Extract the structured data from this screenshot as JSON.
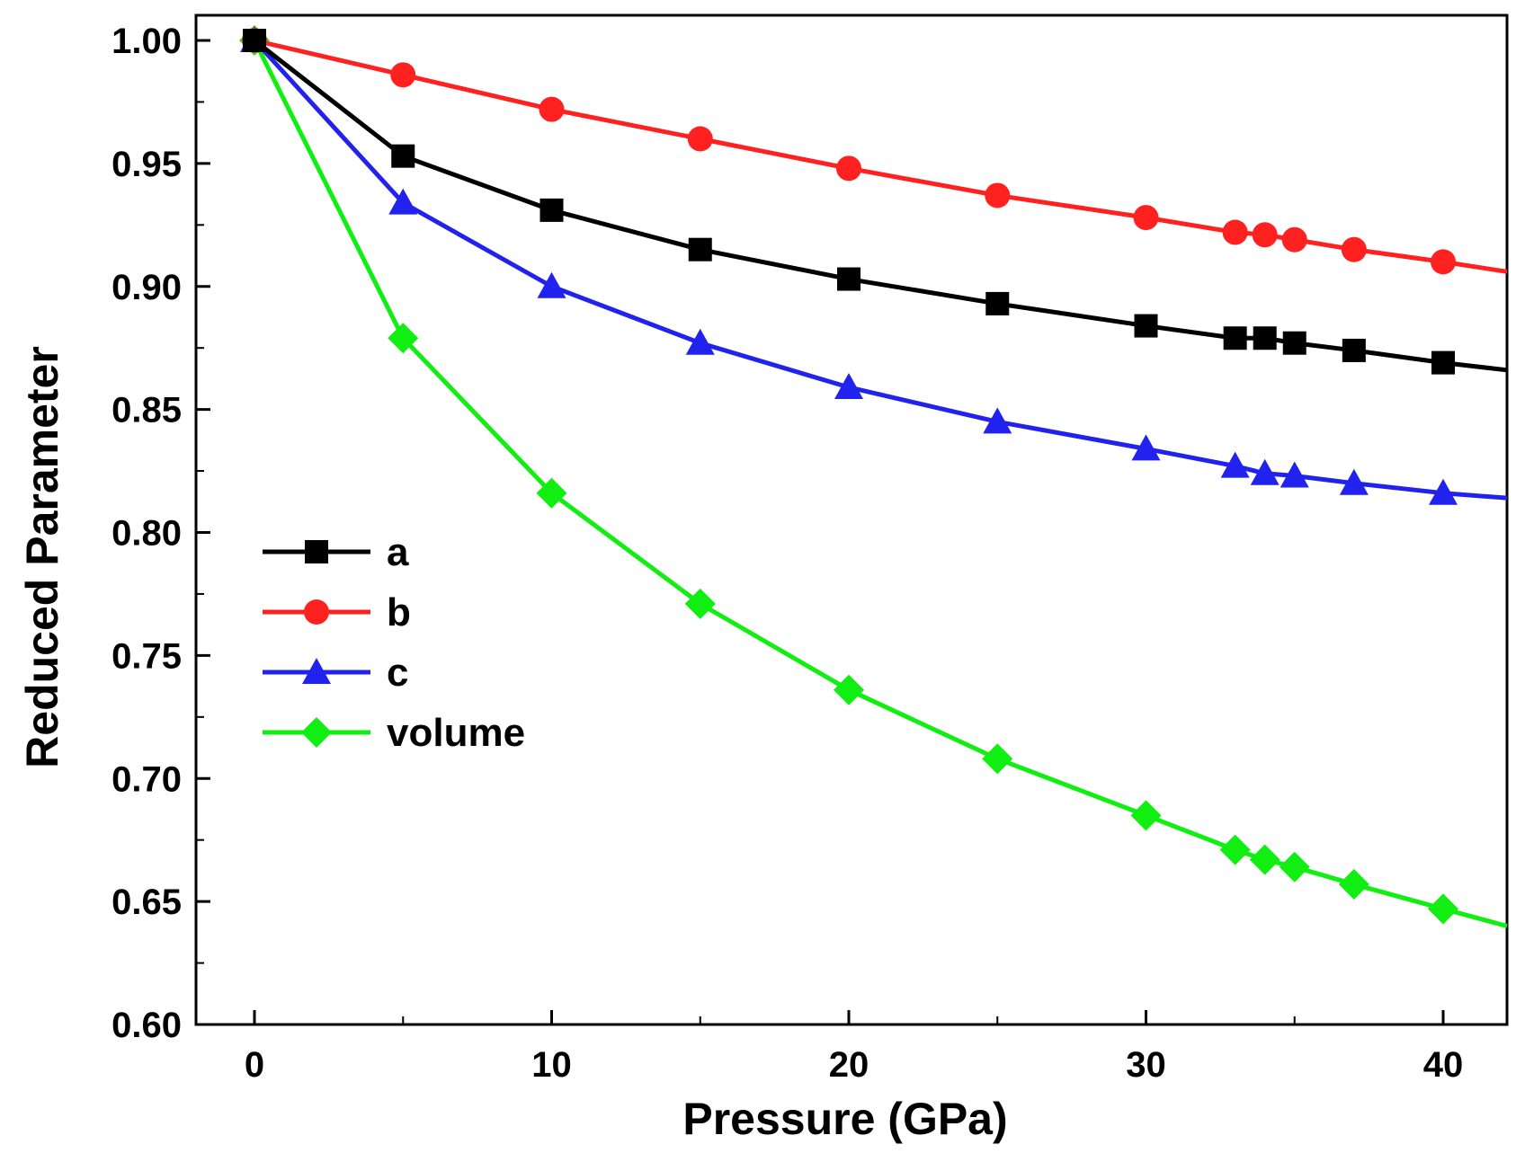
{
  "chart_data": {
    "type": "line",
    "title": "",
    "xlabel": "Pressure (GPa)",
    "ylabel": "Reduced Parameter",
    "xlim": [
      -2,
      42
    ],
    "ylim": [
      0.6,
      1.0
    ],
    "xticks": [
      0,
      10,
      20,
      30,
      40
    ],
    "xtick_labels": [
      "0",
      "10",
      "20",
      "30",
      "40"
    ],
    "yticks": [
      0.6,
      0.65,
      0.7,
      0.75,
      0.8,
      0.85,
      0.9,
      0.95,
      1.0
    ],
    "ytick_labels": [
      "0.60",
      "0.65",
      "0.70",
      "0.75",
      "0.80",
      "0.85",
      "0.90",
      "0.95",
      "1.00"
    ],
    "x": [
      0,
      5,
      10,
      15,
      20,
      25,
      30,
      33,
      34,
      35,
      37,
      40
    ],
    "legend_position": "center-left",
    "series": [
      {
        "name": "a",
        "color": "#000000",
        "marker": "square",
        "values": [
          1.0,
          0.953,
          0.931,
          0.915,
          0.903,
          0.893,
          0.884,
          0.879,
          0.879,
          0.877,
          0.874,
          0.869
        ],
        "line_end": 0.866
      },
      {
        "name": "b",
        "color": "#ff2020",
        "marker": "circle",
        "values": [
          1.0,
          0.986,
          0.972,
          0.96,
          0.948,
          0.937,
          0.928,
          0.922,
          0.921,
          0.919,
          0.915,
          0.91
        ],
        "line_end": 0.906
      },
      {
        "name": "c",
        "color": "#2222ee",
        "marker": "triangle",
        "values": [
          1.0,
          0.934,
          0.9,
          0.877,
          0.859,
          0.845,
          0.834,
          0.827,
          0.824,
          0.823,
          0.82,
          0.816
        ],
        "line_end": 0.814
      },
      {
        "name": "volume",
        "color": "#11ee11",
        "marker": "diamond",
        "values": [
          1.0,
          0.879,
          0.816,
          0.771,
          0.736,
          0.708,
          0.685,
          0.671,
          0.667,
          0.664,
          0.657,
          0.647
        ],
        "line_end": 0.64
      }
    ]
  }
}
